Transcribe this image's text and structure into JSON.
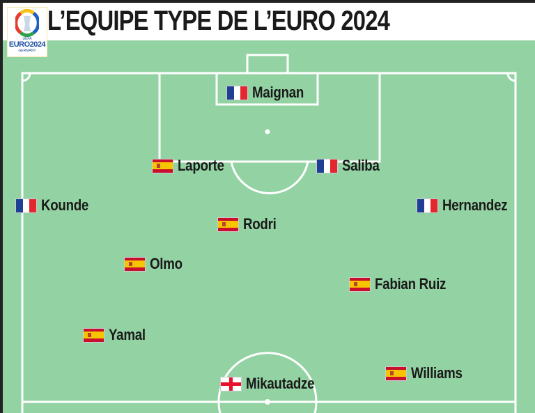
{
  "title": "L’EQUIPE TYPE DE L’EURO 2024",
  "logo": {
    "line1": "EURO2024",
    "line2": "GERMANY",
    "org": "UEFA"
  },
  "colors": {
    "pitch": "#93d3a3",
    "lines": "#ffffff"
  },
  "players": [
    {
      "name": "Maignan",
      "country": "France"
    },
    {
      "name": "Laporte",
      "country": "Spain"
    },
    {
      "name": "Saliba",
      "country": "France"
    },
    {
      "name": "Kounde",
      "country": "France"
    },
    {
      "name": "Hernandez",
      "country": "France"
    },
    {
      "name": "Rodri",
      "country": "Spain"
    },
    {
      "name": "Olmo",
      "country": "Spain"
    },
    {
      "name": "Fabian Ruiz",
      "country": "Spain"
    },
    {
      "name": "Yamal",
      "country": "Spain"
    },
    {
      "name": "Williams",
      "country": "Spain"
    },
    {
      "name": "Mikautadze",
      "country": "Georgia"
    }
  ]
}
